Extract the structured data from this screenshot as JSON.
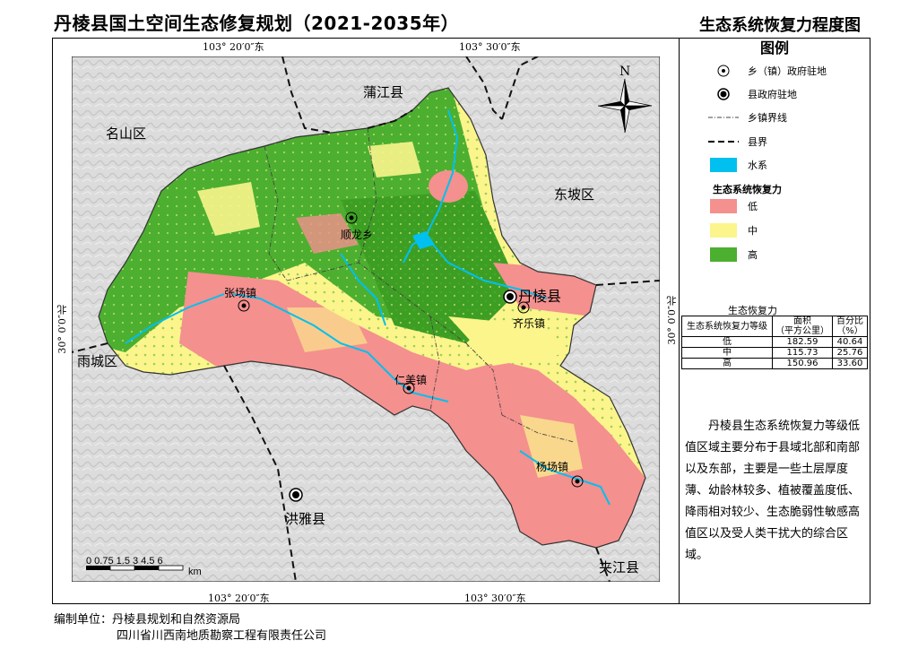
{
  "header": {
    "title": "丹棱县国土空间生态修复规划（2021-2035年）",
    "subtitle": "生态系统恢复力程度图"
  },
  "map": {
    "coords": {
      "top_left": "103° 20′0″东",
      "top_right": "103° 30′0″东",
      "bottom_left": "103° 20′0″东",
      "bottom_right": "103° 30′0″东",
      "left": "30° 0′0″北",
      "right": "30° 0′0″北"
    },
    "places": {
      "pujiang": "蒲江县",
      "mingshan": "名山区",
      "dongpo": "东坡区",
      "yucheng": "雨城区",
      "hongya": "洪雅县",
      "jiajiang": "夹江县",
      "shunlong": "顺龙乡",
      "zhangchang": "张场镇",
      "danleng": "丹棱县",
      "qile": "齐乐镇",
      "renmei": "仁美镇",
      "yangchang": "杨场镇"
    },
    "north_label": "N",
    "scale": {
      "ticks": "0 0.75 1.5   3   4.5   6",
      "unit": "km"
    }
  },
  "legend": {
    "title": "图例",
    "items": {
      "town_seat": "乡（镇）政府驻地",
      "county_seat": "县政府驻地",
      "town_boundary": "乡镇界线",
      "county_boundary": "县界",
      "water": "水系"
    },
    "subhead": "生态系统恢复力",
    "classes": [
      {
        "label": "低",
        "color": "#f4908e"
      },
      {
        "label": "中",
        "color": "#fbf58c"
      },
      {
        "label": "高",
        "color": "#4caf30"
      }
    ],
    "water_color": "#00c0f0"
  },
  "stats_table": {
    "caption": "生态恢复力",
    "headers": {
      "level": "生态系统恢复力等级",
      "area": "面积",
      "area_unit": "（平方公里）",
      "pct": "百分比",
      "pct_unit": "（%）"
    },
    "rows": [
      {
        "level": "低",
        "area": "182.59",
        "pct": "40.64"
      },
      {
        "level": "中",
        "area": "115.73",
        "pct": "25.76"
      },
      {
        "level": "高",
        "area": "150.96",
        "pct": "33.60"
      }
    ]
  },
  "description": "丹棱县生态系统恢复力等级低值区域主要分布于县域北部和南部以及东部，主要是一些土层厚度薄、幼龄林较多、植被覆盖度低、降雨相对较少、生态脆弱性敏感高值区以及受人类干扰大的综合区域。",
  "footer": {
    "line1": "编制单位：丹棱县规划和自然资源局",
    "line2": "四川省川西南地质勘察工程有限责任公司"
  }
}
